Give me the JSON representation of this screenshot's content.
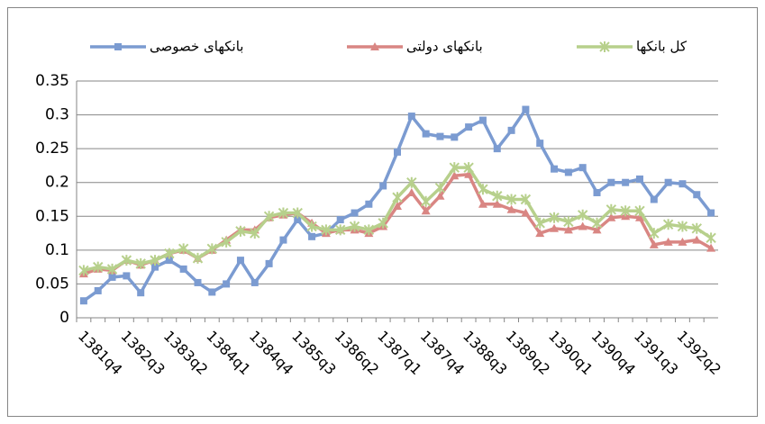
{
  "chart_data": {
    "type": "line",
    "categories": [
      "1381q4",
      null,
      null,
      "1382q3",
      null,
      null,
      "1383q2",
      null,
      null,
      "1384q1",
      null,
      null,
      "1384q4",
      null,
      null,
      "1385q3",
      null,
      null,
      "1386q2",
      null,
      null,
      "1387q1",
      null,
      null,
      "1387q4",
      null,
      null,
      "1388q3",
      null,
      null,
      "1389q2",
      null,
      null,
      "1390q1",
      null,
      null,
      "1390q4",
      null,
      null,
      "1391q3",
      null,
      null,
      "1392q2",
      null,
      null
    ],
    "series": [
      {
        "name": "بانکهای خصوصی",
        "color": "#7b9bd1",
        "marker": "square",
        "values": [
          0.025,
          0.04,
          0.06,
          0.062,
          0.037,
          0.075,
          0.085,
          0.072,
          0.052,
          0.038,
          0.05,
          0.085,
          0.052,
          0.08,
          0.115,
          0.145,
          0.12,
          0.125,
          0.145,
          0.155,
          0.168,
          0.195,
          0.245,
          0.298,
          0.272,
          0.268,
          0.267,
          0.282,
          0.292,
          0.25,
          0.277,
          0.308,
          0.258,
          0.22,
          0.215,
          0.222,
          0.185,
          0.2,
          0.2,
          0.205,
          0.175,
          0.2,
          0.198,
          0.182,
          0.155
        ]
      },
      {
        "name": "بانکهای دولتی",
        "color": "#d98683",
        "marker": "triangle",
        "values": [
          0.065,
          0.072,
          0.07,
          0.085,
          0.078,
          0.085,
          0.095,
          0.1,
          0.088,
          0.1,
          0.115,
          0.13,
          0.13,
          0.148,
          0.152,
          0.155,
          0.14,
          0.125,
          0.13,
          0.13,
          0.125,
          0.135,
          0.165,
          0.185,
          0.158,
          0.18,
          0.21,
          0.212,
          0.168,
          0.168,
          0.16,
          0.155,
          0.125,
          0.132,
          0.13,
          0.135,
          0.13,
          0.148,
          0.15,
          0.148,
          0.108,
          0.112,
          0.112,
          0.115,
          0.103
        ]
      },
      {
        "name": "کل بانکها",
        "color": "#b7d08c",
        "marker": "star",
        "values": [
          0.07,
          0.075,
          0.072,
          0.085,
          0.08,
          0.085,
          0.095,
          0.102,
          0.088,
          0.102,
          0.112,
          0.128,
          0.125,
          0.15,
          0.155,
          0.155,
          0.135,
          0.13,
          0.13,
          0.135,
          0.13,
          0.14,
          0.178,
          0.2,
          0.172,
          0.192,
          0.222,
          0.222,
          0.19,
          0.18,
          0.175,
          0.175,
          0.14,
          0.148,
          0.142,
          0.152,
          0.14,
          0.16,
          0.158,
          0.158,
          0.125,
          0.138,
          0.135,
          0.132,
          0.118
        ]
      }
    ],
    "ylim": [
      0,
      0.35
    ],
    "yticks": [
      0,
      0.05,
      0.1,
      0.15,
      0.2,
      0.25,
      0.3,
      0.35
    ],
    "grid": true,
    "legend": "top"
  }
}
